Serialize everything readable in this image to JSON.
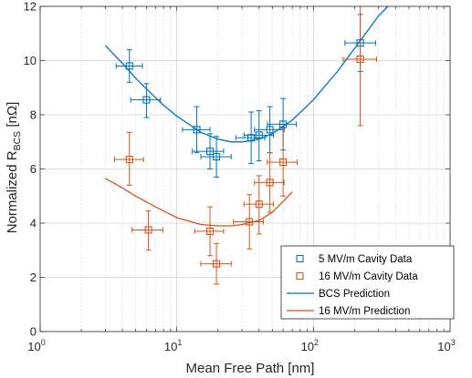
{
  "chart_data": {
    "type": "scatter",
    "xlabel": "Mean Free Path [nm]",
    "ylabel_main": "Normalized R",
    "ylabel_sub": "BCS",
    "ylabel_unit": " [nΩ]",
    "xscale": "log",
    "xlim": [
      1,
      1000
    ],
    "ylim": [
      0,
      12
    ],
    "grid": true,
    "legend_position": "bottom-right",
    "x_tick_labels": [
      {
        "base": "10",
        "exp": "0",
        "value": 1
      },
      {
        "base": "10",
        "exp": "1",
        "value": 10
      },
      {
        "base": "10",
        "exp": "2",
        "value": 100
      },
      {
        "base": "10",
        "exp": "3",
        "value": 1000
      }
    ],
    "y_tick_labels": [
      "0",
      "2",
      "4",
      "6",
      "8",
      "10",
      "12"
    ],
    "y_ticks": [
      0,
      2,
      4,
      6,
      8,
      10,
      12
    ],
    "series": [
      {
        "name": "5 MV/m Cavity Data",
        "kind": "points",
        "color": "#0072BD",
        "points": [
          {
            "x": 4.5,
            "y": 9.8,
            "xerr": [
              3.6,
              5.6
            ],
            "yerr": [
              9.2,
              10.4
            ]
          },
          {
            "x": 6.0,
            "y": 8.55,
            "xerr": [
              4.6,
              7.6
            ],
            "yerr": [
              7.9,
              9.15
            ]
          },
          {
            "x": 14,
            "y": 7.45,
            "xerr": [
              11,
              17.5
            ],
            "yerr": [
              6.6,
              8.3
            ]
          },
          {
            "x": 17.5,
            "y": 6.65,
            "xerr": [
              13,
              22
            ],
            "yerr": [
              6.0,
              7.3
            ]
          },
          {
            "x": 19.5,
            "y": 6.45,
            "xerr": [
              15,
              25
            ],
            "yerr": [
              5.7,
              7.2
            ]
          },
          {
            "x": 35,
            "y": 7.15,
            "xerr": [
              27,
              44
            ],
            "yerr": [
              6.2,
              8.1
            ]
          },
          {
            "x": 40,
            "y": 7.25,
            "xerr": [
              31,
              51
            ],
            "yerr": [
              6.3,
              8.15
            ]
          },
          {
            "x": 48,
            "y": 7.45,
            "xerr": [
              37,
              61
            ],
            "yerr": [
              6.6,
              8.3
            ]
          },
          {
            "x": 60,
            "y": 7.65,
            "xerr": [
              46,
              75
            ],
            "yerr": [
              6.7,
              8.6
            ]
          },
          {
            "x": 220,
            "y": 10.65,
            "xerr": [
              170,
              285
            ],
            "yerr": [
              9.6,
              11.7
            ]
          }
        ]
      },
      {
        "name": "16 MV/m Cavity Data",
        "kind": "points",
        "color": "#D95319",
        "points": [
          {
            "x": 4.5,
            "y": 6.35,
            "xerr": [
              3.5,
              5.7
            ],
            "yerr": [
              5.4,
              7.35
            ]
          },
          {
            "x": 6.2,
            "y": 3.75,
            "xerr": [
              4.7,
              7.9
            ],
            "yerr": [
              3.0,
              4.45
            ]
          },
          {
            "x": 17.5,
            "y": 3.7,
            "xerr": [
              13.5,
              22
            ],
            "yerr": [
              2.8,
              4.6
            ]
          },
          {
            "x": 19.5,
            "y": 2.5,
            "xerr": [
              15,
              25
            ],
            "yerr": [
              1.75,
              3.25
            ]
          },
          {
            "x": 34,
            "y": 4.05,
            "xerr": [
              26,
              43
            ],
            "yerr": [
              3.05,
              5.05
            ]
          },
          {
            "x": 40,
            "y": 4.7,
            "xerr": [
              31,
              51
            ],
            "yerr": [
              3.6,
              5.75
            ]
          },
          {
            "x": 48,
            "y": 5.5,
            "xerr": [
              37,
              61
            ],
            "yerr": [
              4.4,
              6.6
            ]
          },
          {
            "x": 60,
            "y": 6.25,
            "xerr": [
              46,
              76
            ],
            "yerr": [
              5.0,
              7.5
            ]
          },
          {
            "x": 220,
            "y": 10.05,
            "xerr": [
              165,
              290
            ],
            "yerr": [
              7.6,
              12.5
            ]
          }
        ]
      },
      {
        "name": "BCS Prediction",
        "kind": "line",
        "color": "#0072BD",
        "points": [
          {
            "x": 3,
            "y": 10.55
          },
          {
            "x": 4,
            "y": 9.9
          },
          {
            "x": 5,
            "y": 9.35
          },
          {
            "x": 6,
            "y": 8.95
          },
          {
            "x": 8,
            "y": 8.35
          },
          {
            "x": 10,
            "y": 7.95
          },
          {
            "x": 15,
            "y": 7.35
          },
          {
            "x": 20,
            "y": 7.1
          },
          {
            "x": 25,
            "y": 7.0
          },
          {
            "x": 30,
            "y": 7.0
          },
          {
            "x": 40,
            "y": 7.1
          },
          {
            "x": 50,
            "y": 7.3
          },
          {
            "x": 70,
            "y": 7.8
          },
          {
            "x": 100,
            "y": 8.55
          },
          {
            "x": 150,
            "y": 9.6
          },
          {
            "x": 200,
            "y": 10.45
          },
          {
            "x": 300,
            "y": 11.65
          },
          {
            "x": 350,
            "y": 12.1
          }
        ]
      },
      {
        "name": "16 MV/m Prediction",
        "kind": "line",
        "color": "#D95319",
        "points": [
          {
            "x": 3,
            "y": 5.65
          },
          {
            "x": 4,
            "y": 5.3
          },
          {
            "x": 5,
            "y": 5.0
          },
          {
            "x": 7,
            "y": 4.6
          },
          {
            "x": 10,
            "y": 4.2
          },
          {
            "x": 15,
            "y": 3.95
          },
          {
            "x": 20,
            "y": 3.9
          },
          {
            "x": 25,
            "y": 3.9
          },
          {
            "x": 30,
            "y": 3.95
          },
          {
            "x": 40,
            "y": 4.1
          },
          {
            "x": 50,
            "y": 4.4
          },
          {
            "x": 60,
            "y": 4.8
          },
          {
            "x": 70,
            "y": 5.15
          }
        ]
      }
    ]
  }
}
